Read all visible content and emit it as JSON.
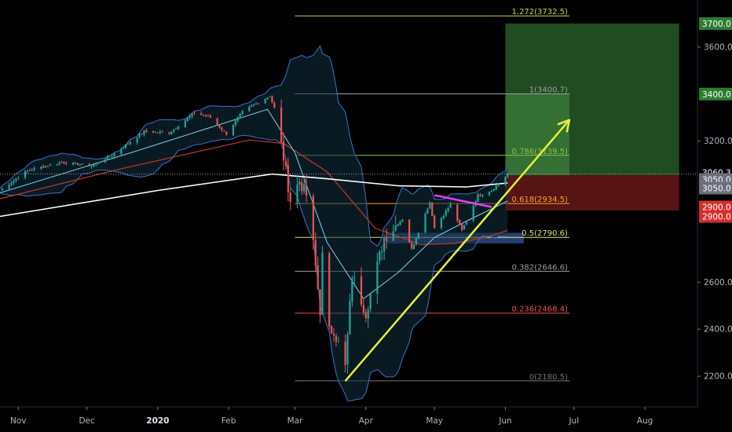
{
  "colors": {
    "background": "#000000",
    "candle_up": "#26a69a",
    "candle_down": "#ef5350",
    "bollinger": "#3a74c9",
    "ma_white": "#ffffff",
    "ma_red": "#c0392b",
    "ma_cyan": "#7fd3e6",
    "trendline": "#e6f23a",
    "triangle_line": "#e040fb",
    "zone_blue": "#2e4a8a",
    "target_green": "#2f6b2f",
    "stop_red": "#7a1c1c"
  },
  "chart_data": {
    "type": "candlestick",
    "y_range": [
      2070,
      3800
    ],
    "x_range": [
      "2019-10-24",
      "2020-08-24"
    ],
    "x_ticks": [
      {
        "label": "Nov",
        "date": "2019-11-01"
      },
      {
        "label": "Dec",
        "date": "2019-12-01"
      },
      {
        "label": "2020",
        "date": "2020-01-01"
      },
      {
        "label": "Feb",
        "date": "2020-02-01"
      },
      {
        "label": "Mar",
        "date": "2020-03-01"
      },
      {
        "label": "Apr",
        "date": "2020-04-01"
      },
      {
        "label": "May",
        "date": "2020-05-01"
      },
      {
        "label": "Jun",
        "date": "2020-06-01"
      },
      {
        "label": "Jul",
        "date": "2020-07-01"
      },
      {
        "label": "Aug",
        "date": "2020-08-01"
      }
    ],
    "y_ticks": [
      "2200.0",
      "2400.0",
      "2600.0",
      "3200.0",
      "3600.0"
    ],
    "price_badges": [
      {
        "label": "3700.0",
        "value": 3700,
        "color": "#2e7d32",
        "text": "#ffffff"
      },
      {
        "label": "3400.0",
        "value": 3400,
        "color": "#2e7d32",
        "text": "#ffffff"
      },
      {
        "label": "3060.3",
        "value": 3067,
        "color": "#000000",
        "text": "#ffffff"
      },
      {
        "label": "3050.0",
        "value": 3037,
        "color": "#6b6f7a",
        "text": "#ffffff"
      },
      {
        "label": "3050.0",
        "value": 3000,
        "color": "#6b6f7a",
        "text": "#ffffff"
      },
      {
        "label": "2900.0",
        "value": 2920,
        "color": "#d32f2f",
        "text": "#ffffff"
      },
      {
        "label": "2900.0",
        "value": 2880,
        "color": "#d32f2f",
        "text": "#ffffff"
      }
    ],
    "fib_levels": [
      {
        "label": "1.272(3732.5)",
        "value": 3732.5,
        "color": "#c9d64a"
      },
      {
        "label": "1(3400.7)",
        "value": 3400.7,
        "color": "#9aa0a6"
      },
      {
        "label": "0.786(3139.5)",
        "value": 3139.5,
        "color": "#8bc34a"
      },
      {
        "label": "0.618(2934.5)",
        "value": 2934.5,
        "color": "#ffa726"
      },
      {
        "label": "0.5(2790.6)",
        "value": 2790.6,
        "color": "#dce775"
      },
      {
        "label": "0.382(2646.6)",
        "value": 2646.6,
        "color": "#9e9e9e"
      },
      {
        "label": "0.236(2468.4)",
        "value": 2468.4,
        "color": "#ef5350"
      },
      {
        "label": "0(2180.5)",
        "value": 2180.5,
        "color": "#757575"
      }
    ],
    "price_line": 3060.3,
    "close_anchors": [
      [
        "2019-10-24",
        2990
      ],
      [
        "2019-11-05",
        3075
      ],
      [
        "2019-11-20",
        3110
      ],
      [
        "2019-12-03",
        3095
      ],
      [
        "2019-12-12",
        3140
      ],
      [
        "2019-12-26",
        3240
      ],
      [
        "2020-01-06",
        3235
      ],
      [
        "2020-01-17",
        3320
      ],
      [
        "2020-01-24",
        3300
      ],
      [
        "2020-01-31",
        3230
      ],
      [
        "2020-02-07",
        3325
      ],
      [
        "2020-02-19",
        3393
      ],
      [
        "2020-02-21",
        3340
      ],
      [
        "2020-02-25",
        3130
      ],
      [
        "2020-02-28",
        2950
      ],
      [
        "2020-03-03",
        3030
      ],
      [
        "2020-03-06",
        2970
      ],
      [
        "2020-03-09",
        2760
      ],
      [
        "2020-03-12",
        2480
      ],
      [
        "2020-03-13",
        2710
      ],
      [
        "2020-03-16",
        2390
      ],
      [
        "2020-03-18",
        2400
      ],
      [
        "2020-03-23",
        2237
      ],
      [
        "2020-03-26",
        2630
      ],
      [
        "2020-04-01",
        2470
      ],
      [
        "2020-04-09",
        2790
      ],
      [
        "2020-04-17",
        2870
      ],
      [
        "2020-04-21",
        2740
      ],
      [
        "2020-04-29",
        2940
      ],
      [
        "2020-05-01",
        2830
      ],
      [
        "2020-05-08",
        2930
      ],
      [
        "2020-05-13",
        2820
      ],
      [
        "2020-05-20",
        2970
      ],
      [
        "2020-05-26",
        2990
      ],
      [
        "2020-06-02",
        3060
      ]
    ],
    "ma_white": [
      [
        "2019-10-24",
        2880
      ],
      [
        "2020-01-01",
        2990
      ],
      [
        "2020-02-20",
        3060
      ],
      [
        "2020-03-15",
        3040
      ],
      [
        "2020-04-15",
        3010
      ],
      [
        "2020-05-15",
        3005
      ],
      [
        "2020-06-02",
        3022
      ]
    ],
    "ma_red": [
      [
        "2019-10-24",
        2955
      ],
      [
        "2019-12-15",
        3080
      ],
      [
        "2020-02-10",
        3205
      ],
      [
        "2020-02-25",
        3190
      ],
      [
        "2020-03-15",
        3070
      ],
      [
        "2020-04-05",
        2830
      ],
      [
        "2020-04-25",
        2760
      ],
      [
        "2020-05-10",
        2765
      ],
      [
        "2020-05-25",
        2795
      ],
      [
        "2020-06-02",
        2820
      ]
    ],
    "ma_cyan": [
      [
        "2019-10-24",
        2980
      ],
      [
        "2019-12-20",
        3150
      ],
      [
        "2020-02-18",
        3335
      ],
      [
        "2020-03-01",
        3150
      ],
      [
        "2020-03-15",
        2770
      ],
      [
        "2020-03-31",
        2530
      ],
      [
        "2020-04-15",
        2640
      ],
      [
        "2020-05-01",
        2790
      ],
      [
        "2020-05-15",
        2860
      ],
      [
        "2020-06-02",
        2945
      ]
    ],
    "trendline": [
      [
        "2020-03-23",
        2180
      ],
      [
        "2020-06-29",
        3290
      ]
    ],
    "triangle_line": [
      [
        "2020-05-01",
        2970
      ],
      [
        "2020-05-26",
        2920
      ]
    ],
    "zones": [
      {
        "name": "target",
        "from": "2020-06-01",
        "to": "2020-08-16",
        "low": 3055,
        "high": 3700,
        "color": "#2f6b2f"
      },
      {
        "name": "target-inner",
        "from": "2020-06-01",
        "to": "2020-06-29",
        "low": 3055,
        "high": 3400,
        "color": "#3d7f3d"
      },
      {
        "name": "stop",
        "from": "2020-06-01",
        "to": "2020-08-16",
        "low": 2905,
        "high": 3055,
        "color": "#7a1c1c"
      },
      {
        "name": "support",
        "from": "2020-04-10",
        "to": "2020-06-09",
        "low": 2765,
        "high": 2810,
        "color": "#2e4a8a"
      }
    ]
  }
}
